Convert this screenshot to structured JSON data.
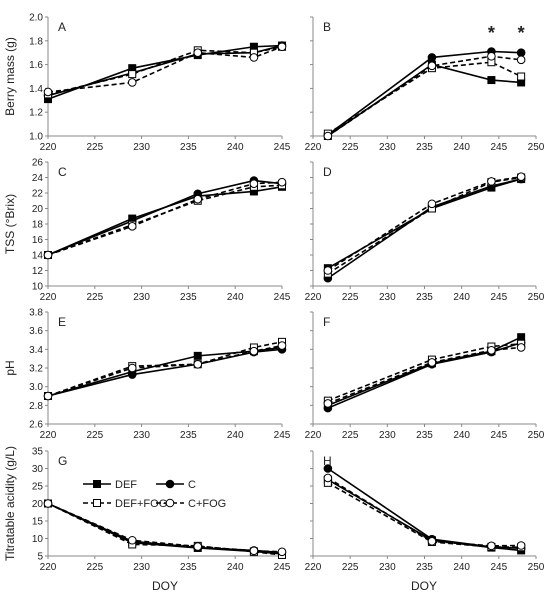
{
  "chart_data": {
    "type": "line",
    "x_axis_label": "DOY",
    "series_styles": [
      {
        "name": "DEF",
        "color": "#000000",
        "dash": "solid",
        "marker": "square",
        "fill": "#000000"
      },
      {
        "name": "C",
        "color": "#000000",
        "dash": "solid",
        "marker": "circle",
        "fill": "#000000"
      },
      {
        "name": "DEF+FOG",
        "color": "#000000",
        "dash": "dashed",
        "marker": "square",
        "fill": "#ffffff"
      },
      {
        "name": "C+FOG",
        "color": "#000000",
        "dash": "dashed",
        "marker": "circle",
        "fill": "#ffffff"
      }
    ],
    "legend": {
      "panel": "G",
      "entries": [
        "DEF",
        "C",
        "DEF+FOG",
        "C+FOG"
      ]
    },
    "rows": [
      {
        "ylabel": "Berry mass (g)"
      },
      {
        "ylabel": "TSS (°Brix)"
      },
      {
        "ylabel": "pH"
      },
      {
        "ylabel": "Titratable acidity (g/L)"
      }
    ],
    "panels": [
      {
        "id": "A",
        "row": 0,
        "col": 0,
        "xlim": [
          220,
          245
        ],
        "xticks": [
          220,
          225,
          230,
          235,
          240,
          245
        ],
        "ylim": [
          1.0,
          2.0
        ],
        "yticks": [
          "1.0",
          "1.2",
          "1.4",
          "1.6",
          "1.8",
          "2.0"
        ],
        "x": [
          220,
          229,
          236,
          242,
          245
        ],
        "series": [
          {
            "name": "DEF",
            "values": [
              1.31,
              1.57,
              1.68,
              1.75,
              1.76
            ]
          },
          {
            "name": "C",
            "values": [
              1.34,
              1.53,
              1.69,
              1.7,
              1.76
            ]
          },
          {
            "name": "DEF+FOG",
            "values": [
              1.35,
              1.52,
              1.72,
              1.7,
              1.75
            ]
          },
          {
            "name": "C+FOG",
            "values": [
              1.37,
              1.45,
              1.7,
              1.66,
              1.75
            ]
          }
        ]
      },
      {
        "id": "B",
        "row": 0,
        "col": 1,
        "xlim": [
          220,
          250
        ],
        "xticks": [
          220,
          225,
          230,
          235,
          240,
          245,
          250
        ],
        "ylim": [
          1.0,
          2.0
        ],
        "yticks": [],
        "x": [
          222,
          236,
          244,
          248
        ],
        "series": [
          {
            "name": "DEF",
            "values": [
              1.0,
              1.6,
              1.47,
              1.45
            ]
          },
          {
            "name": "C",
            "values": [
              1.01,
              1.66,
              1.71,
              1.7
            ]
          },
          {
            "name": "DEF+FOG",
            "values": [
              1.02,
              1.57,
              1.62,
              1.5
            ]
          },
          {
            "name": "C+FOG",
            "values": [
              1.0,
              1.59,
              1.67,
              1.64
            ]
          }
        ],
        "annotations": [
          {
            "text": "*",
            "x": 244
          },
          {
            "text": "*",
            "x": 248
          }
        ]
      },
      {
        "id": "C",
        "row": 1,
        "col": 0,
        "xlim": [
          220,
          245
        ],
        "xticks": [
          220,
          225,
          230,
          235,
          240,
          245
        ],
        "ylim": [
          10,
          26
        ],
        "yticks": [
          "10",
          "12",
          "14",
          "16",
          "18",
          "20",
          "22",
          "24",
          "26"
        ],
        "x": [
          220,
          229,
          236,
          242,
          245
        ],
        "series": [
          {
            "name": "DEF",
            "values": [
              14.0,
              18.7,
              21.6,
              22.2,
              22.8
            ]
          },
          {
            "name": "C",
            "values": [
              14.0,
              18.4,
              21.9,
              23.6,
              23.2
            ]
          },
          {
            "name": "DEF+FOG",
            "values": [
              14.0,
              17.9,
              21.0,
              22.8,
              23.0
            ]
          },
          {
            "name": "C+FOG",
            "values": [
              14.0,
              17.7,
              21.2,
              23.2,
              23.4
            ]
          }
        ]
      },
      {
        "id": "D",
        "row": 1,
        "col": 1,
        "xlim": [
          220,
          250
        ],
        "xticks": [
          220,
          225,
          230,
          235,
          240,
          245,
          250
        ],
        "ylim": [
          10,
          26
        ],
        "yticks": [],
        "x": [
          222,
          236,
          244,
          248
        ],
        "series": [
          {
            "name": "DEF",
            "values": [
              12.3,
              20.0,
              22.7,
              23.8
            ]
          },
          {
            "name": "C",
            "values": [
              11.0,
              20.2,
              22.9,
              23.8
            ]
          },
          {
            "name": "DEF+FOG",
            "values": [
              11.6,
              20.0,
              23.4,
              24.0
            ]
          },
          {
            "name": "C+FOG",
            "values": [
              12.0,
              20.6,
              23.5,
              24.1
            ]
          }
        ]
      },
      {
        "id": "E",
        "row": 2,
        "col": 0,
        "xlim": [
          220,
          245
        ],
        "xticks": [
          220,
          225,
          230,
          235,
          240,
          245
        ],
        "ylim": [
          2.6,
          3.8
        ],
        "yticks": [
          "2.6",
          "2.8",
          "3.0",
          "3.2",
          "3.4",
          "3.6",
          "3.8"
        ],
        "x": [
          220,
          229,
          236,
          242,
          245
        ],
        "series": [
          {
            "name": "DEF",
            "values": [
              2.9,
              3.16,
              3.33,
              3.38,
              3.42
            ]
          },
          {
            "name": "C",
            "values": [
              2.9,
              3.13,
              3.24,
              3.37,
              3.4
            ]
          },
          {
            "name": "DEF+FOG",
            "values": [
              2.9,
              3.22,
              3.24,
              3.42,
              3.48
            ]
          },
          {
            "name": "C+FOG",
            "values": [
              2.9,
              3.2,
              3.24,
              3.38,
              3.44
            ]
          }
        ]
      },
      {
        "id": "F",
        "row": 2,
        "col": 1,
        "xlim": [
          220,
          250
        ],
        "xticks": [
          220,
          225,
          230,
          235,
          240,
          245,
          250
        ],
        "ylim": [
          2.6,
          3.8
        ],
        "yticks": [],
        "x": [
          222,
          236,
          244,
          248
        ],
        "series": [
          {
            "name": "DEF",
            "values": [
              2.8,
              3.25,
              3.38,
              3.53
            ]
          },
          {
            "name": "C",
            "values": [
              2.77,
              3.24,
              3.37,
              3.47
            ]
          },
          {
            "name": "DEF+FOG",
            "values": [
              2.85,
              3.29,
              3.43,
              3.46
            ]
          },
          {
            "name": "C+FOG",
            "values": [
              2.82,
              3.26,
              3.39,
              3.42
            ]
          }
        ]
      },
      {
        "id": "G",
        "row": 3,
        "col": 0,
        "xlim": [
          220,
          245
        ],
        "xticks": [
          220,
          225,
          230,
          235,
          240,
          245
        ],
        "ylim": [
          5,
          35
        ],
        "yticks": [
          "5",
          "10",
          "15",
          "20",
          "25",
          "30",
          "35"
        ],
        "x": [
          220,
          229,
          236,
          242,
          245
        ],
        "series": [
          {
            "name": "DEF",
            "values": [
              20.0,
              8.8,
              7.3,
              6.3,
              5.6
            ]
          },
          {
            "name": "C",
            "values": [
              20.0,
              9.2,
              7.4,
              6.6,
              6.0
            ]
          },
          {
            "name": "DEF+FOG",
            "values": [
              20.0,
              8.3,
              7.9,
              6.2,
              5.3
            ]
          },
          {
            "name": "C+FOG",
            "values": [
              20.0,
              9.5,
              7.7,
              6.5,
              6.2
            ]
          }
        ]
      },
      {
        "id": "H",
        "row": 3,
        "col": 1,
        "xlim": [
          220,
          250
        ],
        "xticks": [
          220,
          225,
          230,
          235,
          240,
          245,
          250
        ],
        "ylim": [
          5,
          35
        ],
        "yticks": [],
        "x": [
          222,
          236,
          244,
          248
        ],
        "series": [
          {
            "name": "DEF",
            "values": [
              26.8,
              9.5,
              7.4,
              6.6
            ]
          },
          {
            "name": "C",
            "values": [
              30.0,
              9.8,
              7.6,
              7.2
            ]
          },
          {
            "name": "DEF+FOG",
            "values": [
              25.9,
              9.0,
              7.6,
              7.5
            ]
          },
          {
            "name": "C+FOG",
            "values": [
              27.3,
              9.2,
              7.9,
              8.0
            ]
          }
        ]
      }
    ]
  }
}
